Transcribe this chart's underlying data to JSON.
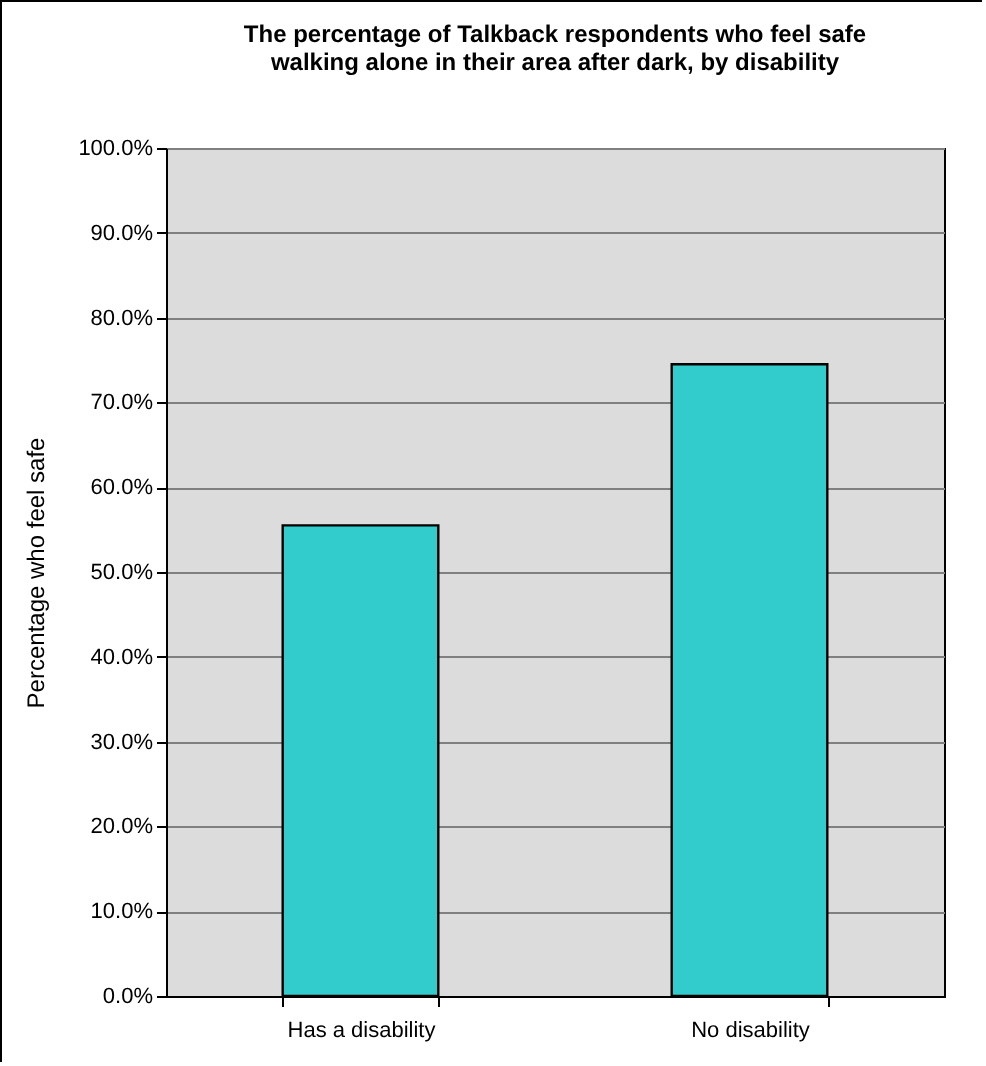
{
  "chart_data": {
    "type": "bar",
    "title": "The percentage of Talkback respondents who feel safe walking alone in their area after dark, by disability",
    "ylabel": "Percentage who feel safe",
    "categories": [
      "Has a disability",
      "No disability"
    ],
    "values": [
      55.5,
      74.5
    ],
    "color": "#33cccc",
    "ylim": [
      0,
      100
    ],
    "yticks": [
      {
        "value": 0,
        "label": "0.0%"
      },
      {
        "value": 10,
        "label": "10.0%"
      },
      {
        "value": 20,
        "label": "20.0%"
      },
      {
        "value": 30,
        "label": "30.0%"
      },
      {
        "value": 40,
        "label": "40.0%"
      },
      {
        "value": 50,
        "label": "50.0%"
      },
      {
        "value": 60,
        "label": "60.0%"
      },
      {
        "value": 70,
        "label": "70.0%"
      },
      {
        "value": 80,
        "label": "80.0%"
      },
      {
        "value": 90,
        "label": "90.0%"
      },
      {
        "value": 100,
        "label": "100.0%"
      }
    ],
    "grid": "y"
  }
}
